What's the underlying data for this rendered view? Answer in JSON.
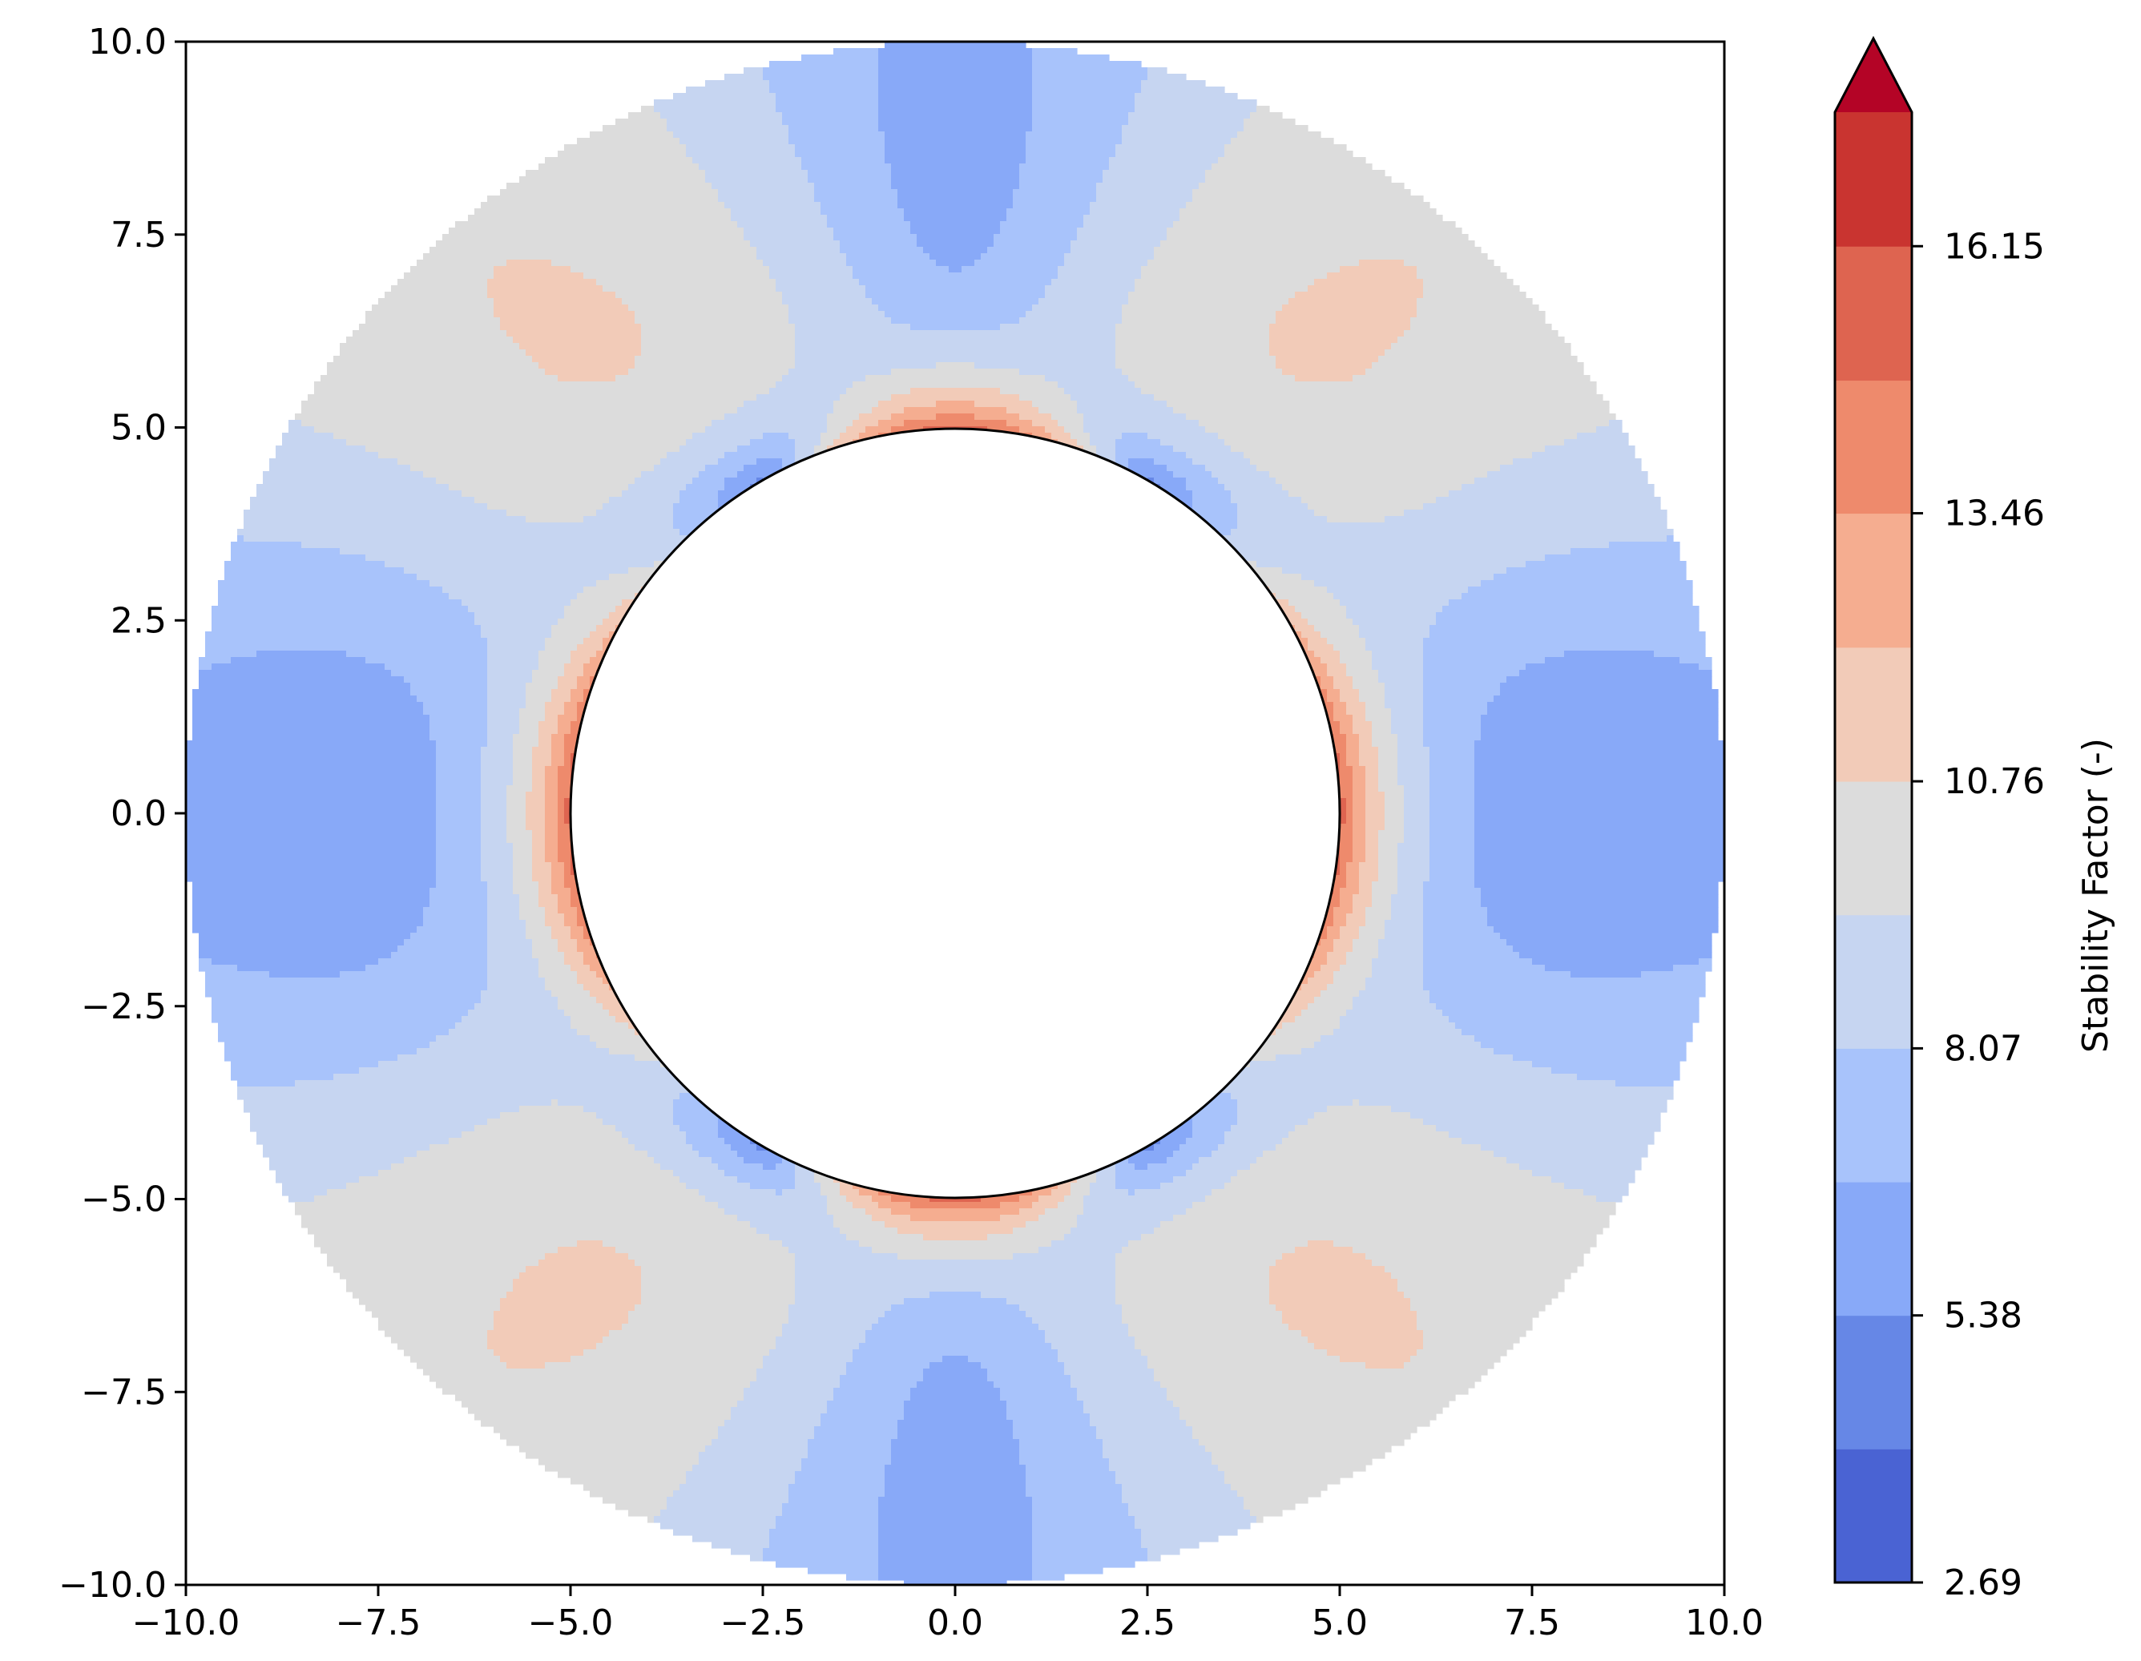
{
  "chart_data": {
    "type": "heatmap",
    "title": "",
    "xlabel": "",
    "ylabel": "",
    "xlim": [
      -10,
      10
    ],
    "ylim": [
      -10,
      10
    ],
    "xticks": [
      "−10.0",
      "−7.5",
      "−5.0",
      "−2.5",
      "0.0",
      "2.5",
      "5.0",
      "7.5",
      "10.0"
    ],
    "yticks": [
      "10.0",
      "7.5",
      "5.0",
      "2.5",
      "0.0",
      "−2.5",
      "−5.0",
      "−7.5",
      "−10.0"
    ],
    "xtick_values": [
      -10,
      -7.5,
      -5,
      -2.5,
      0,
      2.5,
      5,
      7.5,
      10
    ],
    "ytick_values": [
      10,
      7.5,
      5,
      2.5,
      0,
      -2.5,
      -5,
      -7.5,
      -10
    ],
    "domain": {
      "inner_radius": 5,
      "outer_radius": 10
    },
    "field_model": {
      "description_units": "stability factor",
      "min_value": 2.69,
      "max_value": 18.0
    },
    "colorbar": {
      "label": "Stability Factor (-)",
      "tick_labels": [
        "2.69",
        "5.38",
        "8.07",
        "10.76",
        "13.46",
        "16.15"
      ],
      "tick_values": [
        2.69,
        5.38,
        8.07,
        10.76,
        13.46,
        16.15
      ],
      "levels": [
        2.69,
        4.035,
        5.38,
        6.725,
        8.07,
        9.415,
        10.76,
        12.11,
        13.46,
        14.8,
        16.15,
        17.5
      ],
      "extend": "max",
      "colors": [
        "#4a63d3",
        "#6687e6",
        "#88a9f8",
        "#a8c3fb",
        "#c6d5f1",
        "#dcdcdc",
        "#f2cbb8",
        "#f5ad90",
        "#ee8a6c",
        "#de6450",
        "#c93430",
        "#b40426"
      ]
    }
  }
}
